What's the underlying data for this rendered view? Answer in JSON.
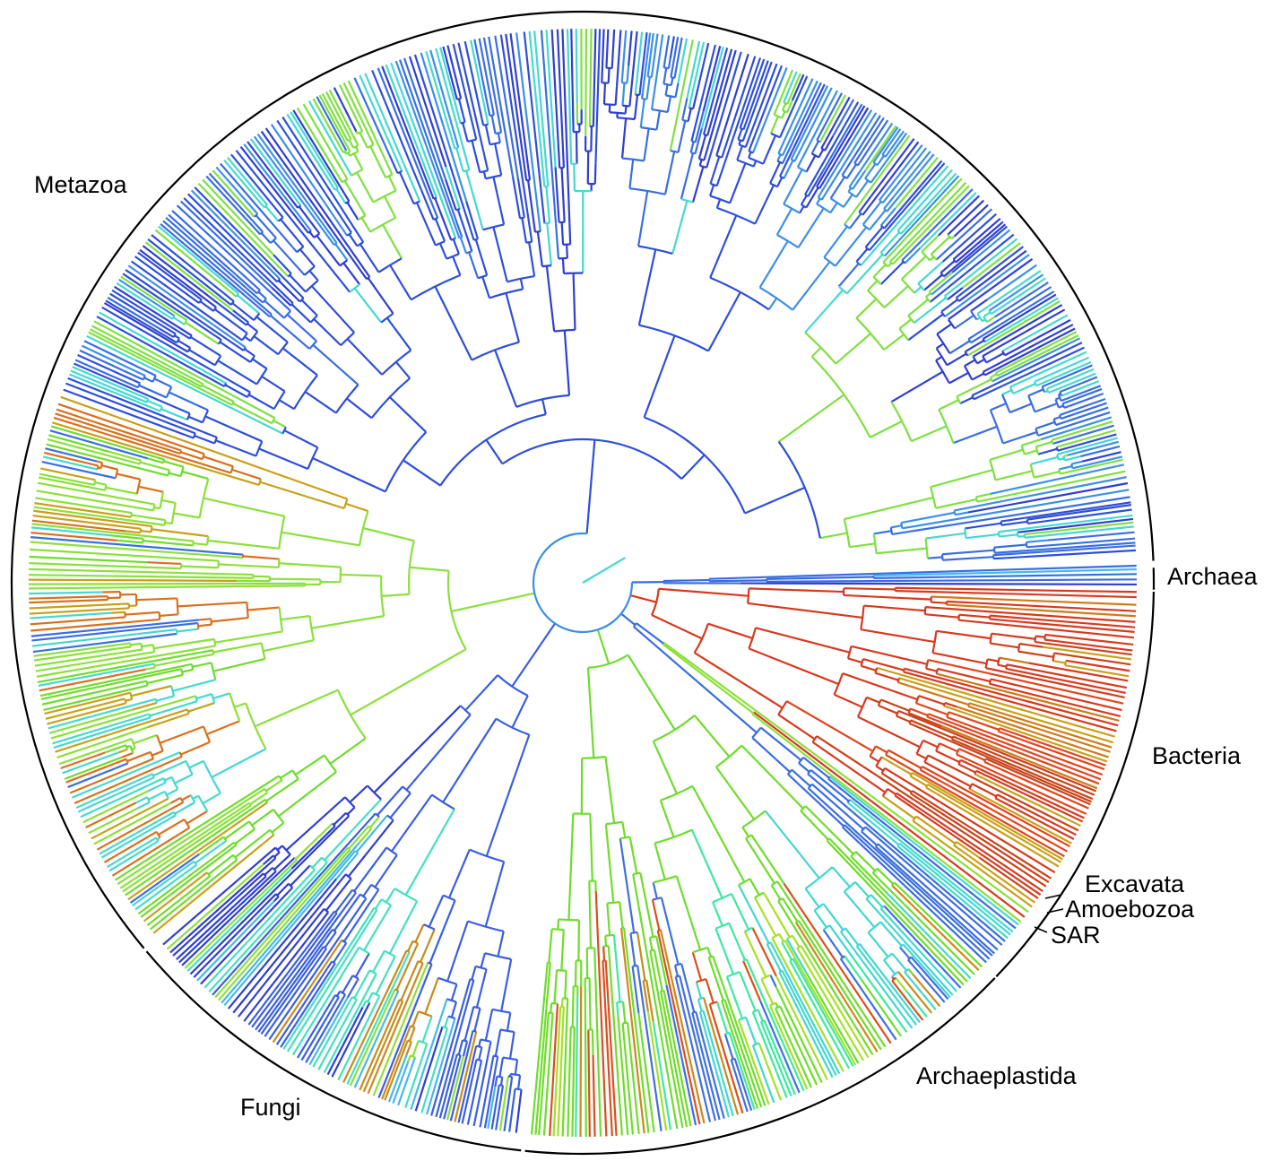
{
  "clades": [
    {
      "label": "Metazoa"
    },
    {
      "label": "Archaea"
    },
    {
      "label": "Bacteria"
    },
    {
      "label": "Excavata"
    },
    {
      "label": "Amoebozoa"
    },
    {
      "label": "SAR"
    },
    {
      "label": "Archaeplastida"
    },
    {
      "label": "Fungi"
    }
  ]
}
